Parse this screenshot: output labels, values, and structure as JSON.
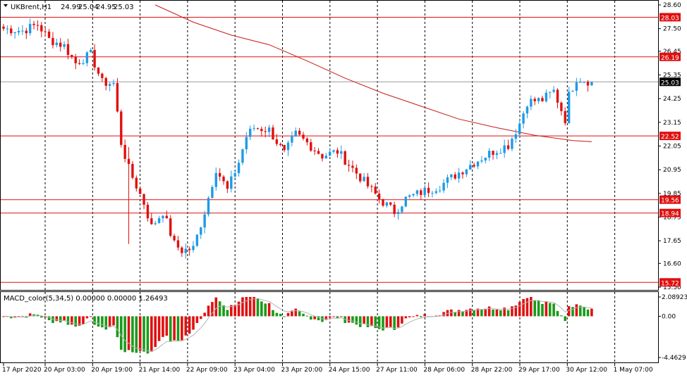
{
  "symbol_label": "UKBrent,H1",
  "ohlc": {
    "open": "24.99",
    "high": "25.04",
    "low": "24.95",
    "close": "25.03"
  },
  "indicator_label": "MACD_color(5,34,5) 0.00000 0.00000 1.26493",
  "colors": {
    "bull": "#1e9be6",
    "bear": "#e01010",
    "hline": "#e01010",
    "ma": "#c81818",
    "macd_pos": "#e01010",
    "macd_neg": "#1a9a1a",
    "signal": "#b4b4b4",
    "grid": "#000000",
    "current_line": "#9a9a9a"
  },
  "chart_data": [
    {
      "type": "candlestick",
      "symbol": "UKBrent",
      "timeframe": "H1",
      "ylim": [
        15.5,
        28.6
      ],
      "y_ticks": [
        "28.60",
        "27.50",
        "26.45",
        "25.35",
        "24.25",
        "23.15",
        "22.05",
        "20.95",
        "19.85",
        "18.75",
        "17.65",
        "16.60",
        "15.50"
      ],
      "x_ticks": [
        "17 Apr 2020",
        "20 Apr 03:00",
        "20 Apr 19:00",
        "21 Apr 14:00",
        "22 Apr 09:00",
        "23 Apr 04:00",
        "23 Apr 20:00",
        "24 Apr 15:00",
        "27 Apr 11:00",
        "28 Apr 06:00",
        "28 Apr 22:00",
        "29 Apr 17:00",
        "30 Apr 12:00",
        "1 May 07:00"
      ],
      "horizontal_levels": [
        {
          "value": 28.03,
          "label": "28.03"
        },
        {
          "value": 26.19,
          "label": "26.19"
        },
        {
          "value": 22.52,
          "label": "22.52"
        },
        {
          "value": 19.56,
          "label": "19.56"
        },
        {
          "value": 18.94,
          "label": "18.94"
        },
        {
          "value": 15.72,
          "label": "15.72"
        }
      ],
      "current_price": {
        "value": 25.03,
        "label": "25.03"
      },
      "close_path": [
        [
          0,
          27.5
        ],
        [
          5,
          27.4
        ],
        [
          9,
          27.7
        ],
        [
          12,
          27.0
        ],
        [
          16,
          26.7
        ],
        [
          19,
          25.9
        ],
        [
          23,
          26.3
        ],
        [
          26,
          25.0
        ],
        [
          29,
          24.95
        ],
        [
          31,
          22.2
        ],
        [
          33,
          21.0
        ],
        [
          37,
          19.4
        ],
        [
          39,
          18.3
        ],
        [
          42,
          19.0
        ],
        [
          45,
          17.5
        ],
        [
          47,
          17.2
        ],
        [
          50,
          17.3
        ],
        [
          53,
          19.0
        ],
        [
          56,
          21.0
        ],
        [
          59,
          20.0
        ],
        [
          62,
          21.3
        ],
        [
          64,
          22.5
        ],
        [
          66,
          22.9
        ],
        [
          70,
          22.8
        ],
        [
          74,
          21.7
        ],
        [
          77,
          22.6
        ],
        [
          80,
          22.2
        ],
        [
          84,
          21.6
        ],
        [
          88,
          21.8
        ],
        [
          91,
          21.2
        ],
        [
          95,
          20.4
        ],
        [
          99,
          19.6
        ],
        [
          103,
          19.0
        ],
        [
          106,
          19.6
        ],
        [
          110,
          19.9
        ],
        [
          115,
          20.2
        ],
        [
          119,
          20.7
        ],
        [
          124,
          21.3
        ],
        [
          129,
          21.8
        ],
        [
          133,
          22.1
        ],
        [
          136,
          23.1
        ],
        [
          138,
          24.1
        ],
        [
          142,
          24.2
        ],
        [
          145,
          24.6
        ],
        [
          148,
          23.3
        ],
        [
          149,
          24.4
        ],
        [
          151,
          25.2
        ],
        [
          155,
          25.03
        ]
      ],
      "moving_average": {
        "points": [
          [
            40,
            28.6
          ],
          [
            50,
            27.8
          ],
          [
            60,
            27.2
          ],
          [
            70,
            26.75
          ],
          [
            80,
            26.0
          ],
          [
            90,
            25.2
          ],
          [
            100,
            24.5
          ],
          [
            110,
            23.9
          ],
          [
            120,
            23.3
          ],
          [
            130,
            22.9
          ],
          [
            140,
            22.55
          ],
          [
            150,
            22.3
          ],
          [
            155,
            22.25
          ]
        ]
      },
      "bar_count": 156
    },
    {
      "type": "bar",
      "name": "MACD_color(5,34,5)",
      "values_text": "0.00000 0.00000 1.26493",
      "ylim": [
        -4.4629,
        2.08923
      ],
      "y_ticks": [
        "2.08923",
        "0.00",
        "-4.4629"
      ],
      "bar_count": 156
    }
  ]
}
